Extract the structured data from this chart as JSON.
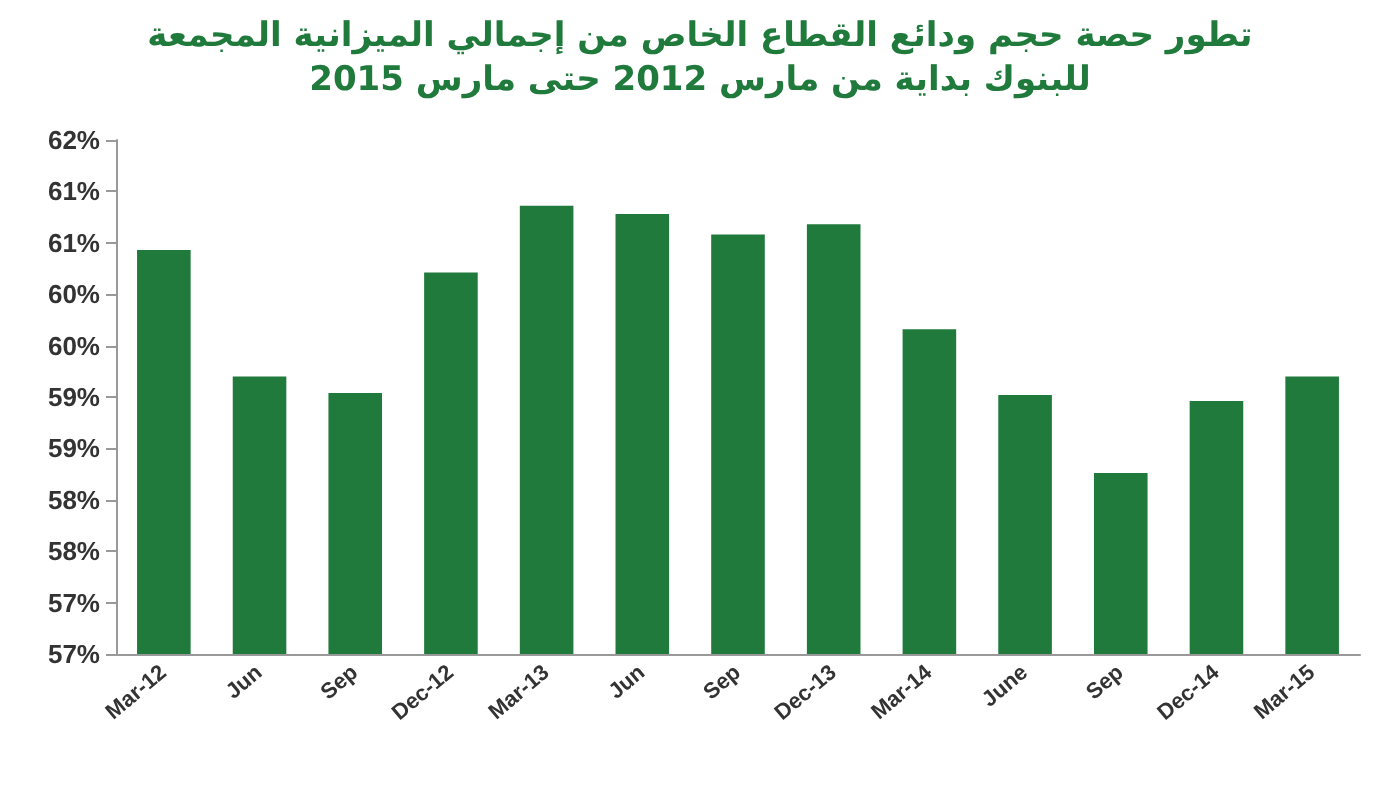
{
  "chart_data": {
    "type": "bar",
    "title": "تطور حصة حجم ودائع القطاع الخاص من إجمالي الميزانية المجمعة\nللبنوك بداية من مارس 2012 حتى مارس 2015",
    "categories": [
      "Mar-12",
      "Jun",
      "Sep",
      "Dec-12",
      "Mar-13",
      "Jun",
      "Sep",
      "Dec-13",
      "Mar-14",
      "June",
      "Sep",
      "Dec-14",
      "Mar-15"
    ],
    "values": [
      60.43,
      59.2,
      59.04,
      60.21,
      60.86,
      60.78,
      60.58,
      60.68,
      59.66,
      59.02,
      58.26,
      58.96,
      59.2
    ],
    "color": "#1f7a3c",
    "ylim": [
      56.5,
      61.5
    ],
    "yticks": [
      {
        "value": 56.5,
        "label": "57%"
      },
      {
        "value": 57,
        "label": "57%"
      },
      {
        "value": 57.5,
        "label": "58%"
      },
      {
        "value": 58,
        "label": "58%"
      },
      {
        "value": 58.5,
        "label": "59%"
      },
      {
        "value": 59,
        "label": "59%"
      },
      {
        "value": 59.5,
        "label": "60%"
      },
      {
        "value": 60,
        "label": "60%"
      },
      {
        "value": 60.5,
        "label": "61%"
      },
      {
        "value": 61,
        "label": "61%"
      },
      {
        "value": 61.5,
        "label": "62%"
      }
    ],
    "grid": false
  }
}
